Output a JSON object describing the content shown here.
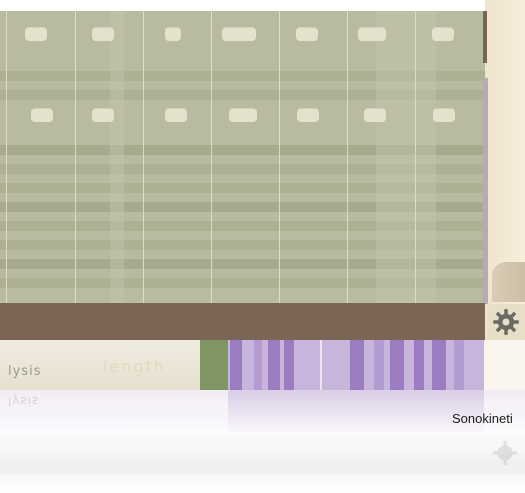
{
  "lower_tabs": {
    "analysis_label": "lysis",
    "length_label": "length"
  },
  "reflection_text": "lysis",
  "brand": {
    "credit": "Sonokineti"
  },
  "icons": {
    "settings": "gear-icon"
  },
  "colors": {
    "grid_background": "#b9bba0",
    "pad": "#e4e2cc",
    "control_bar": "#7b6555",
    "step_active": "#9c7cc1",
    "step_inactive": "#c7b5db",
    "green_marker": "#7f9664"
  }
}
